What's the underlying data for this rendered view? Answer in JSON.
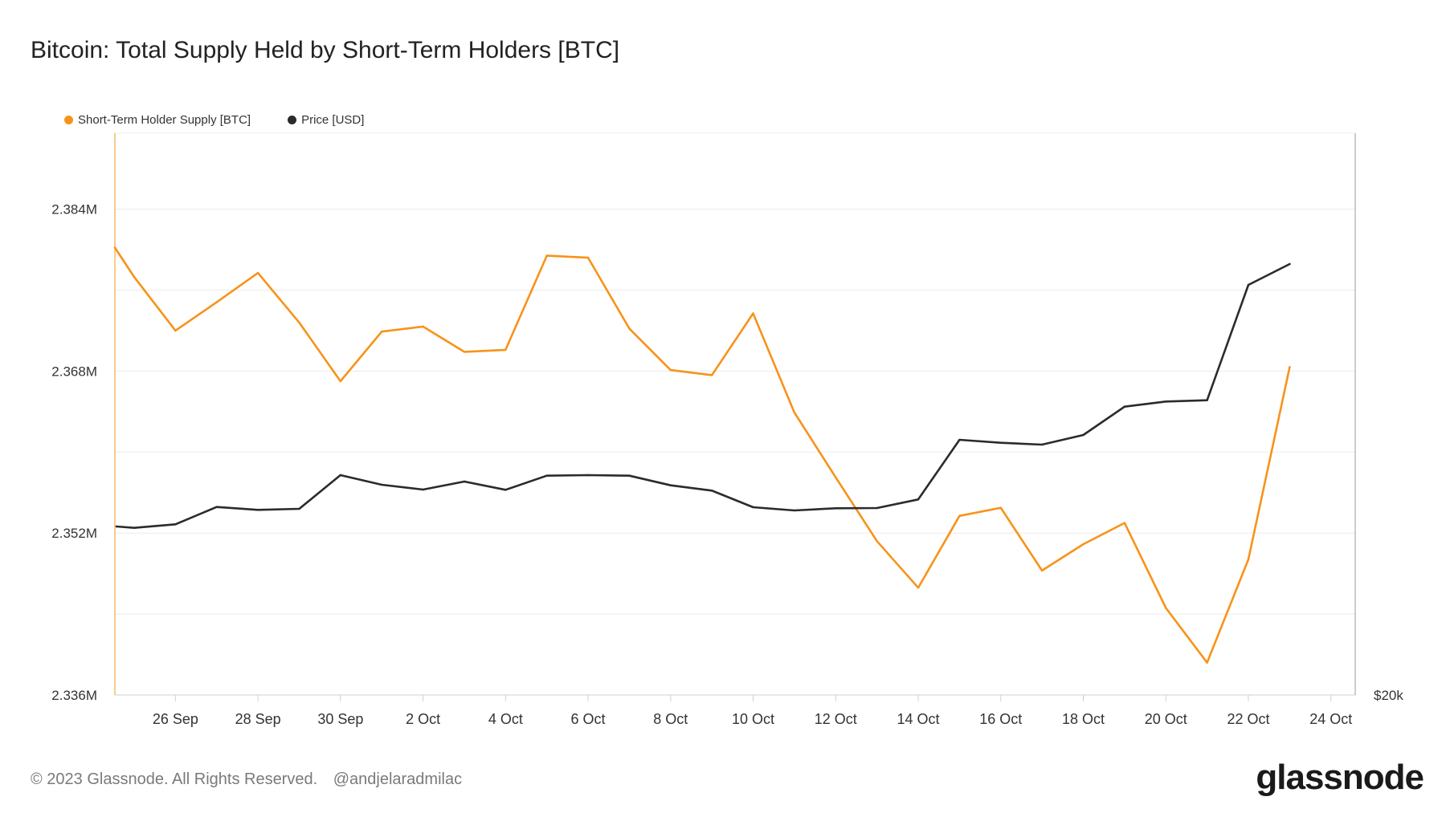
{
  "colors": {
    "supply": "#F7931A",
    "price": "#2B2B2B",
    "grid": "#ececec",
    "axis": "#d0d0d0"
  },
  "chart_data": {
    "type": "line",
    "title": "Bitcoin: Total Supply Held by Short-Term Holders [BTC]",
    "xlabel": "",
    "ylabel": "",
    "x_tick_labels": [
      "26 Sep",
      "28 Sep",
      "30 Sep",
      "2 Oct",
      "4 Oct",
      "6 Oct",
      "8 Oct",
      "10 Oct",
      "12 Oct",
      "14 Oct",
      "16 Oct",
      "18 Oct",
      "20 Oct",
      "22 Oct",
      "24 Oct"
    ],
    "y_tick_labels": [
      "2.384M",
      "2.368M",
      "2.352M",
      "2.336M"
    ],
    "y_tick_values": [
      2384000,
      2368000,
      2352000,
      2336000
    ],
    "ylim": [
      2336000,
      2391500
    ],
    "y2_tick_labels": [
      "$20k"
    ],
    "y2_tick_values": [
      20000
    ],
    "y2lim": [
      20000,
      41000
    ],
    "grid": true,
    "legend_position": "top-left",
    "x": [
      "25 Sep",
      "26 Sep",
      "27 Sep",
      "28 Sep",
      "29 Sep",
      "30 Sep",
      "1 Oct",
      "2 Oct",
      "3 Oct",
      "4 Oct",
      "5 Oct",
      "6 Oct",
      "7 Oct",
      "8 Oct",
      "9 Oct",
      "10 Oct",
      "11 Oct",
      "12 Oct",
      "13 Oct",
      "14 Oct",
      "15 Oct",
      "16 Oct",
      "17 Oct",
      "18 Oct",
      "19 Oct",
      "20 Oct",
      "21 Oct",
      "22 Oct",
      "23 Oct",
      "24 Oct"
    ],
    "series": [
      {
        "name": "Short-Term Holder Supply [BTC]",
        "axis": "left",
        "color": "#F7931A",
        "values": [
          2380200,
          2377300,
          2372000,
          2374800,
          2377700,
          2372800,
          2367000,
          2371900,
          2372400,
          2369900,
          2370100,
          2379400,
          2379200,
          2372200,
          2368100,
          2367600,
          2373700,
          2363900,
          2357500,
          2351200,
          2346600,
          2353700,
          2354500,
          2348300,
          2350900,
          2353000,
          2344600,
          2339200,
          2349400,
          2368400
        ]
      },
      {
        "name": "Price [USD]",
        "axis": "right",
        "color": "#2B2B2B",
        "values": [
          26300,
          26250,
          26380,
          27030,
          26920,
          26960,
          28220,
          27860,
          27680,
          27980,
          27670,
          28200,
          28220,
          28200,
          27840,
          27640,
          27020,
          26900,
          26980,
          26990,
          27310,
          29540,
          29430,
          29360,
          29720,
          30780,
          30970,
          31020,
          35330,
          36110
        ]
      }
    ]
  },
  "footer": {
    "copyright": "© 2023 Glassnode. All Rights Reserved.",
    "handle": "@andjelaradmilac"
  },
  "brand": {
    "logo_text": "glassnode"
  }
}
